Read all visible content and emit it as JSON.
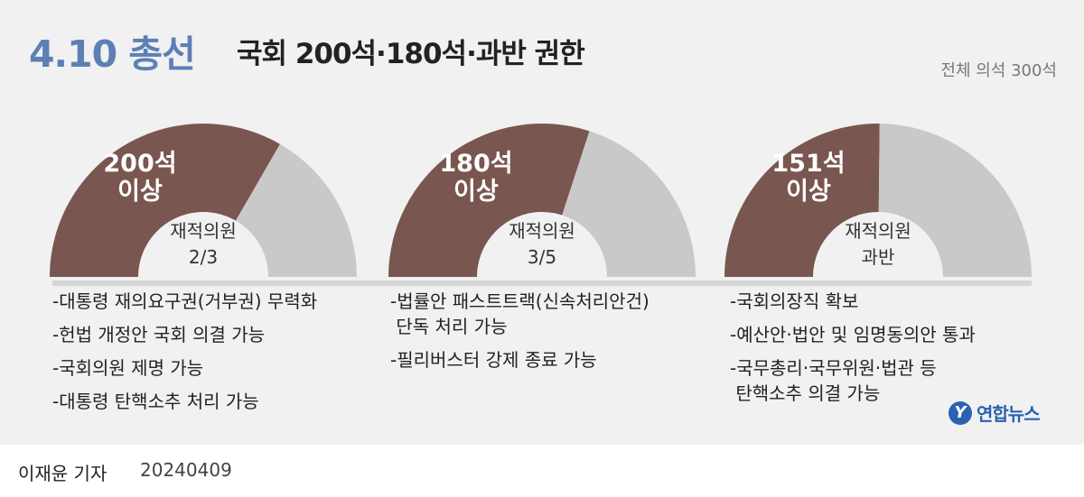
{
  "header": {
    "title_highlight": "4.10 총선",
    "title_main": "국회 200석·180석·과반 권한",
    "total_note": "전체 의석 300석"
  },
  "colors": {
    "filled": "#7a5650",
    "remaining": "#c9c9c9",
    "accent": "#5d80b4",
    "logo": "#2a62b0"
  },
  "chart_data": [
    {
      "type": "pie",
      "total": 300,
      "values": [
        200,
        100
      ],
      "seat_line1": "200석",
      "seat_line2": "이상",
      "quorum_line1": "재적의원",
      "quorum_line2": "2/3",
      "powers": [
        "-대통령 재의요구권(거부권) 무력화",
        "-헌법 개정안 국회 의결 가능",
        "-국회의원 제명 가능",
        "-대통령 탄핵소추 처리 가능"
      ]
    },
    {
      "type": "pie",
      "total": 300,
      "values": [
        180,
        120
      ],
      "seat_line1": "180석",
      "seat_line2": "이상",
      "quorum_line1": "재적의원",
      "quorum_line2": "3/5",
      "powers": [
        "-법률안 패스트트랙(신속처리안건)",
        " 단독 처리 가능",
        "-필리버스터 강제 종료 가능"
      ]
    },
    {
      "type": "pie",
      "total": 300,
      "values": [
        151,
        149
      ],
      "seat_line1": "151석",
      "seat_line2": "이상",
      "quorum_line1": "재적의원",
      "quorum_line2": "과반",
      "powers": [
        "-국회의장직 확보",
        "-예산안·법안 및 임명동의안 통과",
        "-국무총리·국무위원·법관 등",
        " 탄핵소추 의결 가능"
      ]
    }
  ],
  "logo": {
    "mark": "Y",
    "text": "연합뉴스"
  },
  "credit": {
    "name": "이재윤 기자",
    "date": "20240409"
  }
}
